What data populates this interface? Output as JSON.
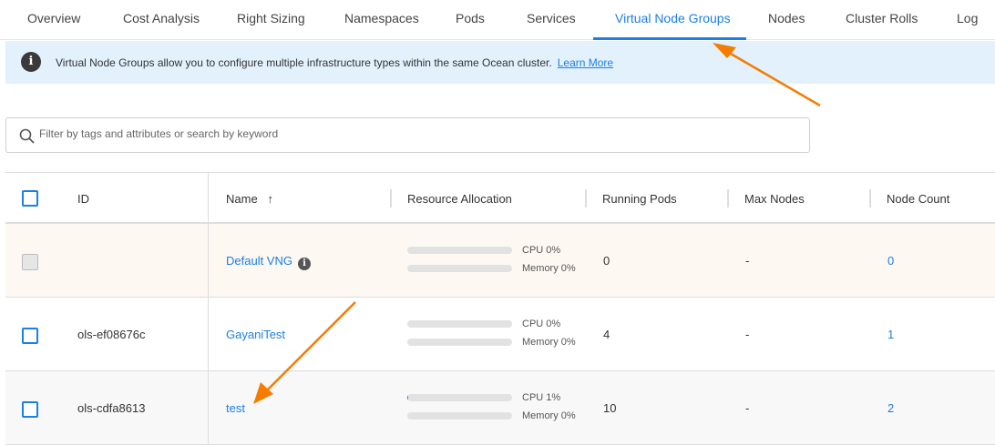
{
  "tabs": [
    {
      "label": "Overview"
    },
    {
      "label": "Cost Analysis"
    },
    {
      "label": "Right Sizing"
    },
    {
      "label": "Namespaces"
    },
    {
      "label": "Pods"
    },
    {
      "label": "Services"
    },
    {
      "label": "Virtual Node Groups",
      "active": true
    },
    {
      "label": "Nodes"
    },
    {
      "label": "Cluster Rolls"
    },
    {
      "label": "Log"
    }
  ],
  "banner": {
    "icon": "info-icon",
    "text": "Virtual Node Groups allow you to configure multiple infrastructure types within the same Ocean cluster.",
    "link": "Learn More"
  },
  "search": {
    "placeholder": "Filter by tags and attributes or search by keyword",
    "value": ""
  },
  "table": {
    "headers": {
      "id": "ID",
      "name": "Name",
      "sort": "↑",
      "resource": "Resource Allocation",
      "running": "Running Pods",
      "max": "Max Nodes",
      "count": "Node Count"
    },
    "rows": [
      {
        "id": "",
        "name": "Default VNG",
        "info": "i",
        "cpu_label": "CPU 0%",
        "mem_label": "Memory 0%",
        "cpu": 0,
        "mem": 0,
        "running": "0",
        "max": "-",
        "count": "0",
        "disabled": true
      },
      {
        "id": "ols-ef08676c",
        "name": "GayaniTest",
        "cpu_label": "CPU 0%",
        "mem_label": "Memory 0%",
        "cpu": 0,
        "mem": 0,
        "running": "4",
        "max": "-",
        "count": "1"
      },
      {
        "id": "ols-cdfa8613",
        "name": "test",
        "cpu_label": "CPU 1%",
        "mem_label": "Memory 0%",
        "cpu": 1,
        "mem": 0,
        "running": "10",
        "max": "-",
        "count": "2"
      }
    ]
  },
  "colors": {
    "accent": "#1a7fe8",
    "arrow": "#f57c00",
    "default_row": "#fef8f2",
    "banner": "#e3f1fd"
  }
}
